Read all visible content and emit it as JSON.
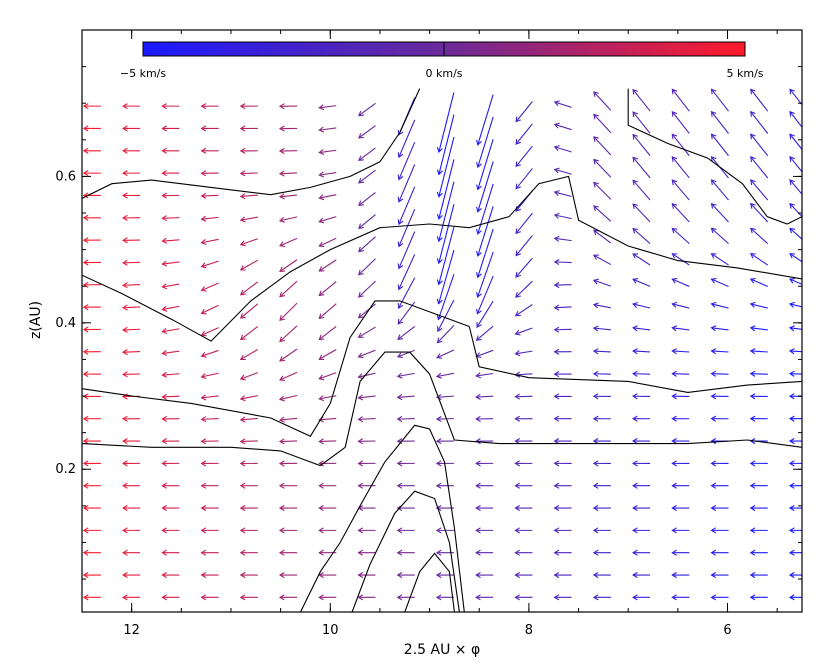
{
  "chart_data": {
    "type": "quiver",
    "xlabel": "2.5 AU × φ",
    "ylabel": "z(AU)",
    "xlim": [
      12.5,
      5.25
    ],
    "ylim": [
      0.005,
      0.8
    ],
    "x_ticks": [
      12,
      10,
      8,
      6
    ],
    "x_tick_labels": [
      "12",
      "10",
      "8",
      "6"
    ],
    "y_ticks": [
      0.2,
      0.4,
      0.6
    ],
    "y_tick_labels": [
      "0.2",
      "0.4",
      "0.6"
    ],
    "colorbar": {
      "placement": "top",
      "min": -5,
      "max": 5,
      "unit": "km/s",
      "labels": [
        "−5 km/s",
        "0 km/s",
        "5 km/s"
      ],
      "colors": [
        "#1a1aff",
        "#6a2a9a",
        "#ff1a2a"
      ]
    },
    "vector_field": {
      "x_start": 12.35,
      "x_step": -0.395,
      "nx": 19,
      "z_start": 0.025,
      "z_step": 0.0305,
      "nz": 23,
      "note_units": "x in 2.5 AU x phi, z in AU, vertical velocity in km/s"
    },
    "contours": [
      [
        [
          12.5,
          0.57
        ],
        [
          12.2,
          0.59
        ],
        [
          11.8,
          0.595
        ],
        [
          11.2,
          0.585
        ],
        [
          10.6,
          0.575
        ],
        [
          10.2,
          0.585
        ],
        [
          9.8,
          0.6
        ],
        [
          9.5,
          0.62
        ],
        [
          9.3,
          0.66
        ],
        [
          9.1,
          0.72
        ]
      ],
      [
        [
          7.0,
          0.72
        ],
        [
          7.0,
          0.67
        ],
        [
          6.6,
          0.645
        ],
        [
          6.2,
          0.625
        ],
        [
          5.85,
          0.59
        ],
        [
          5.6,
          0.545
        ],
        [
          5.4,
          0.535
        ],
        [
          5.25,
          0.545
        ]
      ],
      [
        [
          12.5,
          0.465
        ],
        [
          12.1,
          0.44
        ],
        [
          11.6,
          0.405
        ],
        [
          11.2,
          0.375
        ],
        [
          10.8,
          0.43
        ],
        [
          10.4,
          0.47
        ],
        [
          10.0,
          0.5
        ],
        [
          9.5,
          0.53
        ],
        [
          9.0,
          0.535
        ],
        [
          8.6,
          0.53
        ],
        [
          8.2,
          0.545
        ],
        [
          7.9,
          0.59
        ],
        [
          7.6,
          0.6
        ],
        [
          7.5,
          0.54
        ],
        [
          7.0,
          0.505
        ],
        [
          6.5,
          0.485
        ],
        [
          5.9,
          0.475
        ],
        [
          5.25,
          0.46
        ]
      ],
      [
        [
          12.5,
          0.31
        ],
        [
          12.0,
          0.3
        ],
        [
          11.4,
          0.29
        ],
        [
          10.6,
          0.27
        ],
        [
          10.2,
          0.245
        ],
        [
          10.0,
          0.29
        ],
        [
          9.8,
          0.38
        ],
        [
          9.55,
          0.43
        ],
        [
          9.3,
          0.43
        ],
        [
          8.9,
          0.41
        ],
        [
          8.6,
          0.395
        ],
        [
          8.5,
          0.34
        ],
        [
          8.0,
          0.325
        ],
        [
          7.0,
          0.32
        ],
        [
          6.4,
          0.305
        ],
        [
          5.8,
          0.315
        ],
        [
          5.25,
          0.32
        ]
      ],
      [
        [
          12.5,
          0.235
        ],
        [
          11.8,
          0.23
        ],
        [
          11.0,
          0.23
        ],
        [
          10.5,
          0.225
        ],
        [
          10.1,
          0.205
        ],
        [
          9.85,
          0.23
        ],
        [
          9.7,
          0.32
        ],
        [
          9.45,
          0.36
        ],
        [
          9.2,
          0.36
        ],
        [
          9.0,
          0.33
        ],
        [
          8.75,
          0.24
        ],
        [
          8.3,
          0.235
        ],
        [
          7.4,
          0.235
        ],
        [
          6.4,
          0.235
        ],
        [
          5.8,
          0.24
        ],
        [
          5.25,
          0.23
        ]
      ],
      [
        [
          10.3,
          0.005
        ],
        [
          10.1,
          0.06
        ],
        [
          9.9,
          0.1
        ],
        [
          9.7,
          0.15
        ],
        [
          9.45,
          0.21
        ],
        [
          9.15,
          0.26
        ],
        [
          9.0,
          0.255
        ],
        [
          8.85,
          0.21
        ],
        [
          8.75,
          0.12
        ],
        [
          8.65,
          0.005
        ]
      ],
      [
        [
          9.78,
          0.005
        ],
        [
          9.6,
          0.07
        ],
        [
          9.35,
          0.14
        ],
        [
          9.15,
          0.17
        ],
        [
          8.95,
          0.16
        ],
        [
          8.8,
          0.1
        ],
        [
          8.7,
          0.005
        ]
      ],
      [
        [
          9.25,
          0.005
        ],
        [
          9.1,
          0.06
        ],
        [
          8.95,
          0.085
        ],
        [
          8.8,
          0.06
        ],
        [
          8.75,
          0.005
        ]
      ]
    ]
  }
}
